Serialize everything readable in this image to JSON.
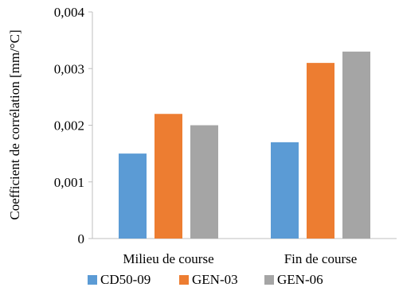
{
  "chart_data": {
    "type": "bar",
    "categories": [
      "Milieu de course",
      "Fin de course"
    ],
    "series": [
      {
        "name": "CD50-09",
        "values": [
          0.0015,
          0.0017
        ],
        "color": "#5b9bd5"
      },
      {
        "name": "GEN-03",
        "values": [
          0.0022,
          0.0031
        ],
        "color": "#ed7d31"
      },
      {
        "name": "GEN-06",
        "values": [
          0.002,
          0.0033
        ],
        "color": "#a5a5a5"
      }
    ],
    "ylabel": "Coefficient de corrélation [mm/°C]",
    "xlabel": "",
    "ylim": [
      0,
      0.004
    ],
    "yticks": [
      0,
      0.001,
      0.002,
      0.003,
      0.004
    ],
    "ytick_labels": [
      "0",
      "0,001",
      "0,002",
      "0,003",
      "0,004"
    ],
    "legend_position": "bottom",
    "grid": false
  }
}
